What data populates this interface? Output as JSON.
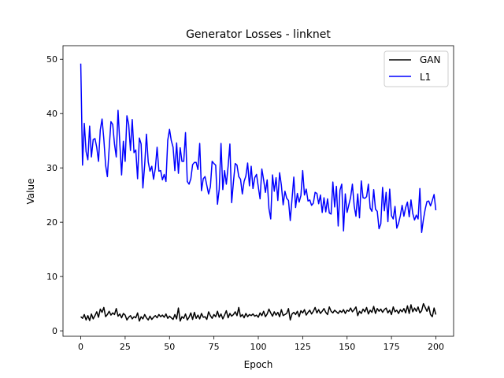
{
  "chart_data": {
    "type": "line",
    "title": "Generator Losses - linknet",
    "xlabel": "Epoch",
    "ylabel": "Value",
    "xlim": [
      -10,
      210
    ],
    "ylim": [
      -1,
      52.5
    ],
    "xticks": [
      0,
      25,
      50,
      75,
      100,
      125,
      150,
      175,
      200
    ],
    "yticks": [
      0,
      10,
      20,
      30,
      40,
      50
    ],
    "grid": false,
    "legend_position": "top-right",
    "series": [
      {
        "name": "GAN",
        "color": "#000000",
        "x": [
          0,
          1,
          2,
          3,
          4,
          5,
          6,
          7,
          8,
          9,
          10,
          11,
          12,
          13,
          14,
          15,
          16,
          17,
          18,
          19,
          20,
          21,
          22,
          23,
          24,
          25,
          26,
          27,
          28,
          29,
          30,
          31,
          32,
          33,
          34,
          35,
          36,
          37,
          38,
          39,
          40,
          41,
          42,
          43,
          44,
          45,
          46,
          47,
          48,
          49,
          50,
          51,
          52,
          53,
          54,
          55,
          56,
          57,
          58,
          59,
          60,
          61,
          62,
          63,
          64,
          65,
          66,
          67,
          68,
          69,
          70,
          71,
          72,
          73,
          74,
          75,
          76,
          77,
          78,
          79,
          80,
          81,
          82,
          83,
          84,
          85,
          86,
          87,
          88,
          89,
          90,
          91,
          92,
          93,
          94,
          95,
          96,
          97,
          98,
          99,
          100,
          101,
          102,
          103,
          104,
          105,
          106,
          107,
          108,
          109,
          110,
          111,
          112,
          113,
          114,
          115,
          116,
          117,
          118,
          119,
          120,
          121,
          122,
          123,
          124,
          125,
          126,
          127,
          128,
          129,
          130,
          131,
          132,
          133,
          134,
          135,
          136,
          137,
          138,
          139,
          140,
          141,
          142,
          143,
          144,
          145,
          146,
          147,
          148,
          149,
          150,
          151,
          152,
          153,
          154,
          155,
          156,
          157,
          158,
          159,
          160,
          161,
          162,
          163,
          164,
          165,
          166,
          167,
          168,
          169,
          170,
          171,
          172,
          173,
          174,
          175,
          176,
          177,
          178,
          179,
          180,
          181,
          182,
          183,
          184,
          185,
          186,
          187,
          188,
          189,
          190,
          191,
          192,
          193,
          194,
          195,
          196,
          197,
          198,
          199,
          200
        ],
        "values": [
          2.6,
          2.3,
          3.0,
          2.0,
          2.8,
          1.9,
          3.1,
          2.2,
          2.8,
          3.5,
          2.5,
          4.0,
          3.4,
          4.3,
          2.6,
          3.0,
          3.6,
          2.9,
          3.3,
          3.0,
          4.1,
          2.7,
          3.1,
          2.4,
          3.2,
          2.9,
          2.0,
          2.5,
          2.8,
          2.2,
          2.6,
          2.4,
          3.3,
          1.8,
          2.6,
          2.2,
          3.0,
          2.4,
          2.0,
          2.7,
          2.1,
          2.5,
          2.8,
          2.4,
          3.0,
          2.6,
          2.9,
          2.5,
          3.1,
          2.3,
          2.7,
          2.4,
          2.1,
          3.0,
          2.2,
          4.2,
          1.8,
          2.6,
          2.3,
          3.1,
          2.0,
          2.5,
          3.3,
          2.1,
          3.4,
          2.3,
          2.9,
          2.2,
          3.2,
          2.5,
          2.6,
          2.1,
          3.5,
          2.8,
          2.3,
          3.0,
          2.6,
          3.6,
          2.5,
          3.1,
          2.2,
          2.9,
          3.7,
          2.4,
          3.2,
          2.7,
          3.0,
          3.5,
          2.8,
          4.3,
          2.6,
          3.0,
          2.4,
          3.2,
          2.6,
          3.0,
          2.8,
          3.1,
          2.7,
          2.9,
          2.5,
          3.3,
          2.8,
          3.6,
          2.6,
          3.1,
          4.0,
          3.3,
          2.7,
          3.5,
          2.9,
          3.4,
          2.6,
          3.9,
          2.8,
          3.0,
          3.2,
          4.1,
          2.0,
          3.1,
          3.4,
          3.0,
          3.6,
          2.6,
          3.7,
          3.3,
          3.9,
          2.9,
          3.4,
          3.8,
          3.1,
          3.6,
          4.3,
          3.3,
          3.9,
          3.2,
          3.6,
          4.1,
          3.4,
          3.0,
          4.4,
          3.6,
          3.3,
          3.8,
          3.5,
          3.2,
          3.7,
          3.4,
          3.9,
          3.2,
          3.8,
          3.6,
          4.2,
          3.5,
          3.9,
          4.4,
          2.8,
          3.6,
          3.2,
          4.0,
          3.5,
          4.3,
          3.1,
          3.8,
          3.4,
          4.5,
          3.2,
          4.1,
          3.6,
          4.0,
          3.4,
          3.9,
          4.2,
          3.3,
          3.8,
          3.0,
          4.4,
          3.5,
          3.8,
          3.2,
          3.9,
          3.5,
          4.1,
          3.3,
          4.6,
          3.2,
          4.8,
          3.5,
          4.2,
          3.6,
          4.4,
          3.3,
          3.7,
          5.0,
          4.3,
          3.6,
          4.5,
          3.0,
          2.6,
          4.2,
          3.0
        ]
      },
      {
        "name": "L1",
        "color": "#0000ff",
        "x": [
          0,
          1,
          2,
          3,
          4,
          5,
          6,
          7,
          8,
          9,
          10,
          11,
          12,
          13,
          14,
          15,
          16,
          17,
          18,
          19,
          20,
          21,
          22,
          23,
          24,
          25,
          26,
          27,
          28,
          29,
          30,
          31,
          32,
          33,
          34,
          35,
          36,
          37,
          38,
          39,
          40,
          41,
          42,
          43,
          44,
          45,
          46,
          47,
          48,
          49,
          50,
          51,
          52,
          53,
          54,
          55,
          56,
          57,
          58,
          59,
          60,
          61,
          62,
          63,
          64,
          65,
          66,
          67,
          68,
          69,
          70,
          71,
          72,
          73,
          74,
          75,
          76,
          77,
          78,
          79,
          80,
          81,
          82,
          83,
          84,
          85,
          86,
          87,
          88,
          89,
          90,
          91,
          92,
          93,
          94,
          95,
          96,
          97,
          98,
          99,
          100,
          101,
          102,
          103,
          104,
          105,
          106,
          107,
          108,
          109,
          110,
          111,
          112,
          113,
          114,
          115,
          116,
          117,
          118,
          119,
          120,
          121,
          122,
          123,
          124,
          125,
          126,
          127,
          128,
          129,
          130,
          131,
          132,
          133,
          134,
          135,
          136,
          137,
          138,
          139,
          140,
          141,
          142,
          143,
          144,
          145,
          146,
          147,
          148,
          149,
          150,
          151,
          152,
          153,
          154,
          155,
          156,
          157,
          158,
          159,
          160,
          161,
          162,
          163,
          164,
          165,
          166,
          167,
          168,
          169,
          170,
          171,
          172,
          173,
          174,
          175,
          176,
          177,
          178,
          179,
          180,
          181,
          182,
          183,
          184,
          185,
          186,
          187,
          188,
          189,
          190,
          191,
          192,
          193,
          194,
          195,
          196,
          197,
          198,
          199,
          200
        ],
        "values": [
          49.2,
          30.5,
          38.2,
          33.0,
          31.5,
          37.7,
          32.0,
          35.2,
          35.4,
          33.8,
          31.2,
          37.0,
          39.0,
          35.3,
          30.5,
          28.4,
          33.6,
          38.5,
          38.0,
          34.4,
          32.0,
          40.6,
          34.5,
          28.7,
          34.9,
          31.2,
          39.6,
          38.0,
          33.2,
          38.9,
          32.8,
          33.3,
          28.0,
          35.5,
          34.4,
          26.3,
          30.5,
          36.2,
          31.1,
          29.4,
          30.3,
          27.9,
          29.9,
          33.8,
          29.4,
          29.5,
          27.8,
          28.8,
          27.5,
          35.1,
          37.1,
          35.0,
          33.8,
          29.5,
          34.6,
          29.0,
          33.7,
          31.2,
          31.2,
          36.5,
          27.5,
          27.0,
          28.0,
          30.6,
          31.0,
          31.0,
          29.7,
          34.5,
          25.8,
          28.0,
          28.4,
          26.8,
          25.2,
          26.5,
          31.2,
          30.8,
          30.5,
          23.3,
          26.1,
          34.5,
          26.0,
          29.5,
          27.0,
          30.3,
          34.4,
          23.6,
          27.4,
          30.8,
          30.5,
          28.4,
          27.9,
          25.2,
          27.5,
          28.5,
          30.9,
          26.7,
          30.3,
          26.2,
          28.2,
          28.8,
          26.5,
          24.3,
          29.8,
          27.8,
          25.5,
          27.8,
          22.5,
          20.6,
          28.7,
          25.7,
          28.2,
          24.0,
          29.1,
          26.8,
          23.2,
          25.7,
          24.4,
          24.0,
          20.3,
          24.3,
          28.3,
          22.7,
          25.3,
          23.7,
          24.9,
          29.5,
          25.0,
          26.1,
          23.9,
          24.1,
          23.1,
          23.5,
          25.5,
          25.3,
          23.4,
          25.0,
          21.8,
          24.5,
          21.9,
          24.3,
          21.7,
          21.5,
          27.4,
          22.8,
          26.6,
          19.3,
          25.9,
          27.0,
          18.4,
          25.2,
          21.8,
          23.2,
          24.6,
          27.0,
          23.0,
          21.1,
          25.2,
          20.8,
          27.6,
          24.5,
          24.4,
          24.7,
          27.0,
          22.6,
          22.0,
          26.0,
          22.4,
          22.0,
          18.8,
          19.7,
          26.4,
          22.1,
          25.5,
          20.1,
          26.1,
          21.2,
          20.6,
          22.9,
          18.9,
          19.8,
          21.2,
          23.1,
          21.1,
          22.7,
          23.7,
          21.0,
          24.1,
          21.6,
          20.4,
          21.3,
          20.6,
          26.2,
          18.1,
          20.5,
          22.4,
          23.8,
          23.9,
          23.0,
          24.0,
          25.1,
          22.2
        ]
      }
    ]
  }
}
